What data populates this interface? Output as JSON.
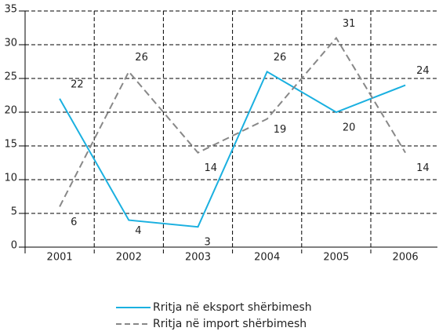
{
  "chart_data": {
    "type": "line",
    "categories": [
      "2001",
      "2002",
      "2003",
      "2004",
      "2005",
      "2006"
    ],
    "series": [
      {
        "name": "Rritja në eksport shërbimesh",
        "color": "#1ab0e0",
        "dash": false,
        "values": [
          22,
          4,
          3,
          26,
          20,
          24
        ]
      },
      {
        "name": "Rritja në import shërbimesh",
        "color": "#888888",
        "dash": true,
        "values": [
          6,
          26,
          14,
          19,
          31,
          14
        ]
      }
    ],
    "ylim": [
      0,
      35
    ],
    "yticks": [
      0,
      5,
      10,
      15,
      20,
      25,
      30,
      35
    ],
    "grid": true,
    "legend": "bottom"
  }
}
